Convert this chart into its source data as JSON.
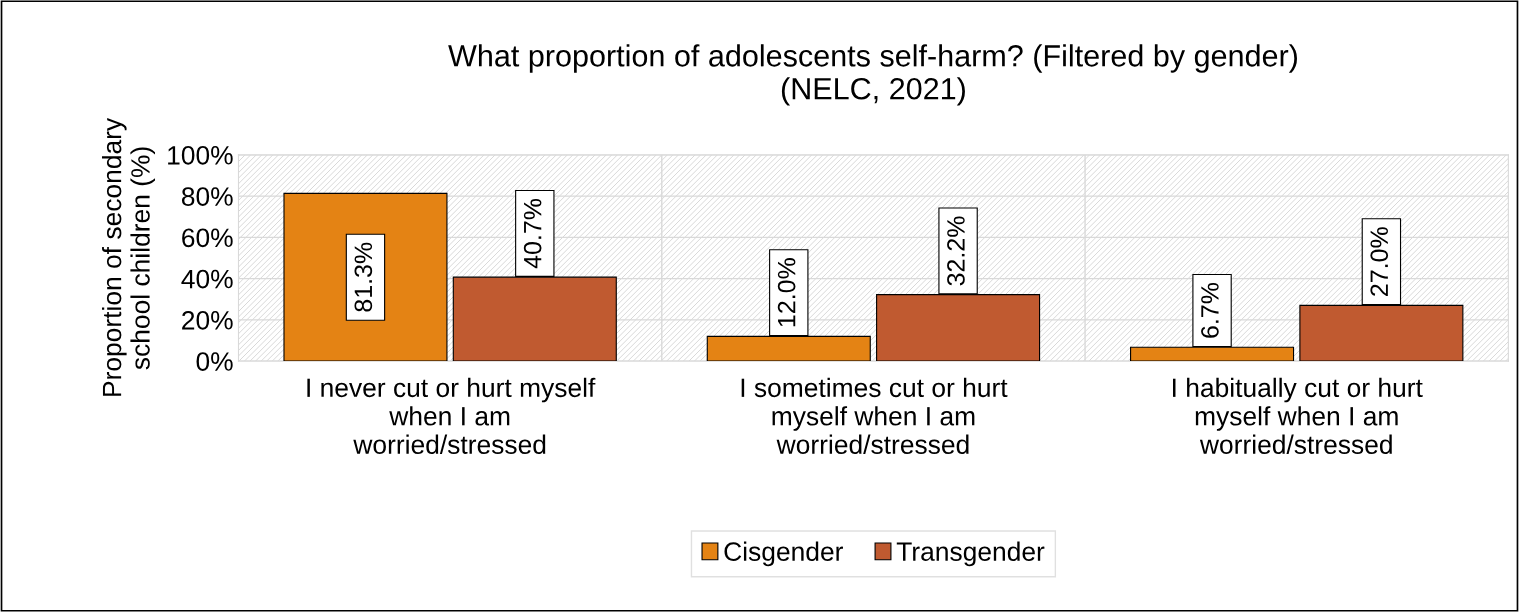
{
  "chart_data": {
    "type": "bar",
    "title": "What proportion of adolescents self-harm? (Filtered by gender)\n(NELC, 2021)",
    "ylabel": "Proportion of secondary\nschool children (%)",
    "categories": [
      "I never cut or hurt myself\nwhen I am\nworried/stressed",
      "I sometimes cut or hurt\nmyself when I am\nworried/stressed",
      "I habitually cut or hurt\nmyself when I am\nworried/stressed"
    ],
    "series": [
      {
        "name": "Cisgender",
        "color": "#e48314",
        "values": [
          81.3,
          12.0,
          6.7
        ],
        "value_labels": [
          "81.3%",
          "12.0%",
          "6.7%"
        ]
      },
      {
        "name": "Transgender",
        "color": "#c05a30",
        "values": [
          40.7,
          32.2,
          27.0
        ],
        "value_labels": [
          "40.7%",
          "32.2%",
          "27.0%"
        ]
      }
    ],
    "ylim": [
      0,
      100
    ],
    "yticks": [
      {
        "value": 0,
        "label": "0%"
      },
      {
        "value": 20,
        "label": "20%"
      },
      {
        "value": 40,
        "label": "40%"
      },
      {
        "value": 60,
        "label": "60%"
      },
      {
        "value": 80,
        "label": "80%"
      },
      {
        "value": 100,
        "label": "100%"
      }
    ],
    "grid": "y",
    "legend": "bottom"
  }
}
